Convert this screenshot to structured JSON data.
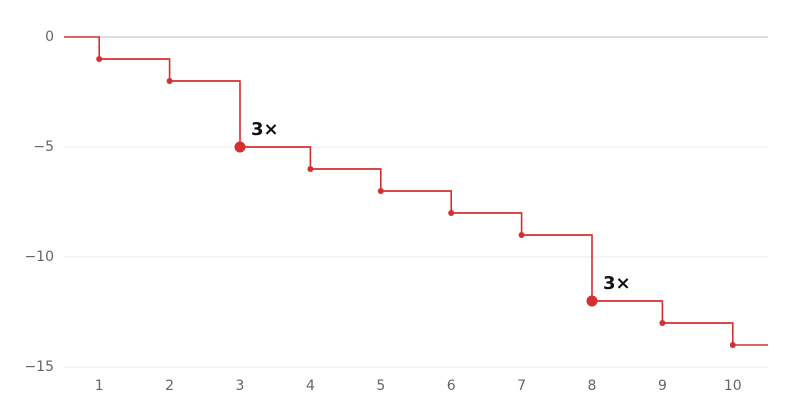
{
  "chart_data": {
    "type": "step",
    "x": [
      1,
      2,
      3,
      4,
      5,
      6,
      7,
      8,
      9,
      10
    ],
    "series": [
      {
        "color": "#d62f2f",
        "values": [
          -1,
          -2,
          -5,
          -6,
          -7,
          -8,
          -9,
          -12,
          -13,
          -14
        ]
      }
    ],
    "annotations": [
      {
        "text": "3×",
        "x": 3,
        "y": -5
      },
      {
        "text": "3×",
        "x": 8,
        "y": -12
      }
    ],
    "xlim": [
      0.5,
      10.5
    ],
    "xticks": [
      1,
      2,
      3,
      4,
      5,
      6,
      7,
      8,
      9,
      10
    ],
    "ylim": [
      -15,
      0
    ],
    "yticks": [
      {
        "value": 0,
        "label": "0"
      },
      {
        "value": -5,
        "label": "−5"
      },
      {
        "value": -10,
        "label": "−10"
      },
      {
        "value": -15,
        "label": "−15"
      }
    ],
    "grid": true
  }
}
